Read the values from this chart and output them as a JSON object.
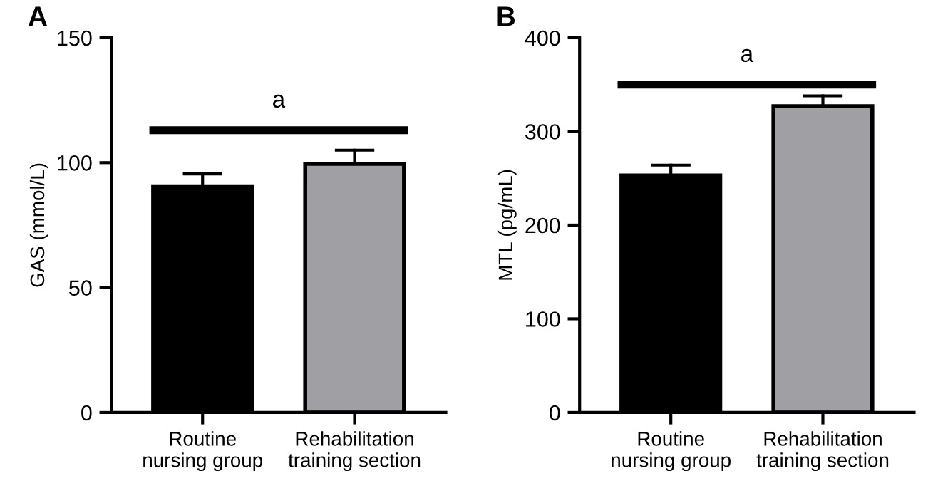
{
  "chart_data": [
    {
      "type": "bar",
      "title": "A",
      "ylabel": "GAS (mmol/L)",
      "categories": [
        "Routine\nnursing group",
        "Rehabilitation\ntraining section"
      ],
      "values": [
        90.5,
        99.5
      ],
      "colors": [
        "#000000",
        "#a0a0a4"
      ],
      "errors": [
        [
          90.5,
          95.5
        ],
        [
          99.5,
          105
        ]
      ],
      "ylim": [
        0,
        150
      ],
      "yticks": [
        0,
        50,
        100,
        150
      ],
      "grid": false,
      "legend": false,
      "ref_lines": [
        {
          "axis": "y",
          "value": 113,
          "label": "a"
        }
      ]
    },
    {
      "type": "bar",
      "title": "B",
      "ylabel": "MTL (pg/mL)",
      "categories": [
        "Routine\nnursing group",
        "Rehabilitation\ntraining section"
      ],
      "values": [
        253,
        327
      ],
      "colors": [
        "#000000",
        "#a0a0a4"
      ],
      "errors": [
        [
          253,
          264
        ],
        [
          327,
          338
        ]
      ],
      "ylim": [
        0,
        400
      ],
      "yticks": [
        0,
        100,
        200,
        300,
        400
      ],
      "grid": false,
      "legend": false,
      "ref_lines": [
        {
          "axis": "y",
          "value": 350,
          "label": "a"
        }
      ]
    }
  ]
}
